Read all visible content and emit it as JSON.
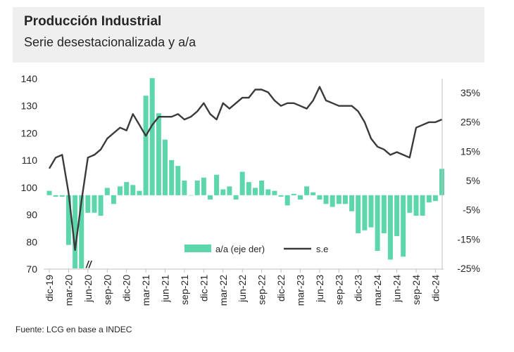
{
  "header": {
    "title": "Producción Industrial",
    "subtitle": "Serie desestacionalizada y a/a"
  },
  "source": "Fuente: LCG en base a INDEC",
  "break_mark": "//",
  "colors": {
    "bars": "#5ed6ac",
    "line": "#3a3a3a",
    "header_bg": "#efefef"
  },
  "chart_data": {
    "type": "bar+line",
    "x_start": "2019-12",
    "x_tick_labels": [
      "dic-19",
      "mar-20",
      "jun-20",
      "sep-20",
      "dic-20",
      "mar-21",
      "jun-21",
      "sep-21",
      "dic-21",
      "mar-22",
      "jun-22",
      "sep-22",
      "dic-22",
      "mar-23",
      "jun-23",
      "sep-23",
      "dic-23",
      "mar-24",
      "jun-24",
      "sep-24",
      "dic-24"
    ],
    "left_axis": {
      "ylim": [
        70,
        140
      ],
      "ticks": [
        70,
        80,
        90,
        100,
        110,
        120,
        130,
        140
      ]
    },
    "right_axis": {
      "ylim": [
        -25,
        40
      ],
      "ticks": [
        -25,
        -15,
        -5,
        5,
        15,
        25,
        35
      ],
      "tick_labels": [
        "-25%",
        "-15%",
        "-5%",
        "5%",
        "15%",
        "25%",
        "35%"
      ]
    },
    "legend": {
      "position": "bottom-center"
    },
    "series": [
      {
        "name": "a/a (eje der)",
        "kind": "bar",
        "axis": "right",
        "values": [
          1.5,
          -0.5,
          -0.5,
          -17,
          -25,
          -25,
          -6,
          -6,
          -7,
          2.5,
          -3,
          3,
          4.5,
          3.5,
          1.5,
          34,
          40,
          28,
          19,
          12,
          10,
          5,
          0,
          5,
          6,
          -1.5,
          7,
          2,
          3,
          -1.5,
          8,
          4.5,
          2.5,
          5,
          2,
          1.5,
          -0.5,
          -3.5,
          0.5,
          -1.5,
          3,
          1,
          -1.5,
          -3,
          -4,
          -3,
          -3,
          -5.5,
          -13,
          -12,
          -11,
          -19,
          -13,
          -22,
          -14,
          -21,
          -6,
          -7,
          -7,
          -2.5,
          -2,
          9
        ]
      },
      {
        "name": "s.e",
        "kind": "line",
        "axis": "left",
        "values": [
          107,
          111,
          112,
          98,
          77,
          95,
          111,
          112,
          114,
          118,
          120,
          122,
          121,
          127,
          123,
          119,
          123,
          126,
          126,
          126,
          127,
          125,
          126,
          128,
          131,
          127,
          125,
          131,
          129,
          131,
          133,
          133,
          136,
          136,
          135,
          132,
          130,
          131,
          131,
          130,
          129,
          132,
          137,
          132,
          131,
          130,
          130,
          130,
          128,
          124,
          118,
          115,
          114,
          112,
          113,
          112,
          111,
          122,
          123,
          124,
          124,
          125
        ]
      }
    ]
  }
}
